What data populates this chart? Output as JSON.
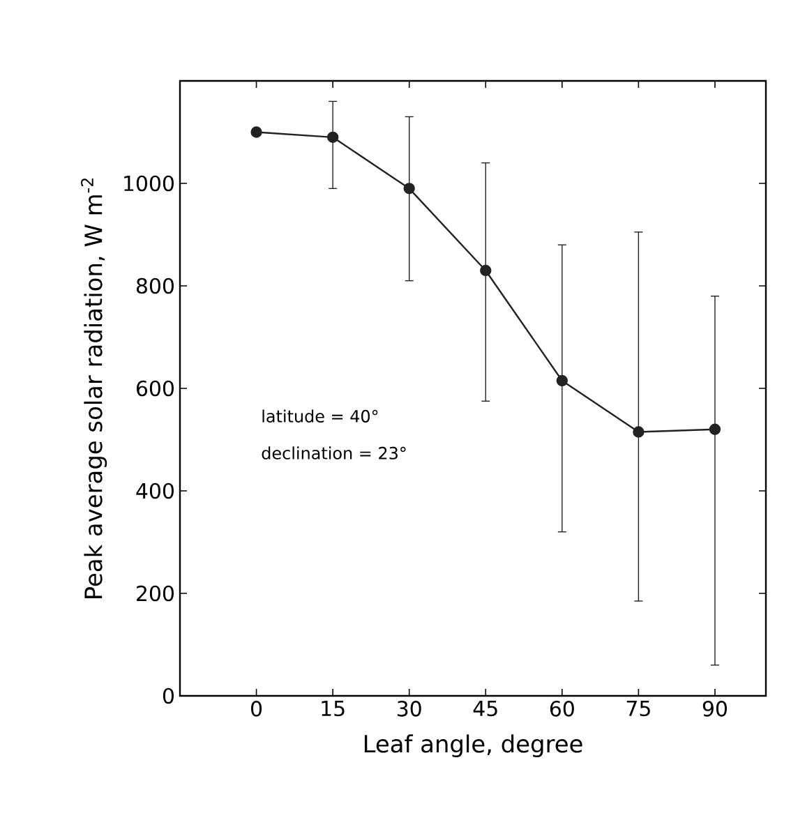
{
  "chart_data": {
    "type": "line",
    "xlabel": "Leaf angle, degree",
    "ylabel": "Peak average solar radiation, W m$^{-2}$",
    "x": [
      0,
      15,
      30,
      45,
      60,
      75,
      90
    ],
    "values": [
      1100,
      1090,
      990,
      830,
      615,
      515,
      520
    ],
    "errors": [
      null,
      [
        990,
        1160
      ],
      [
        810,
        1130
      ],
      [
        575,
        1040
      ],
      [
        320,
        880
      ],
      [
        185,
        905
      ],
      [
        60,
        780
      ]
    ],
    "color": "#222222",
    "marker": "circle",
    "line_style": "solid",
    "xlim": [
      -15,
      100
    ],
    "xticks": [
      0,
      15,
      30,
      45,
      60,
      75,
      90
    ],
    "ylim": [
      0,
      1200
    ],
    "yticks": [
      0,
      200,
      400,
      600,
      800,
      1000
    ],
    "annotations": [
      "latitude = 40°",
      "declination = 23°"
    ]
  }
}
